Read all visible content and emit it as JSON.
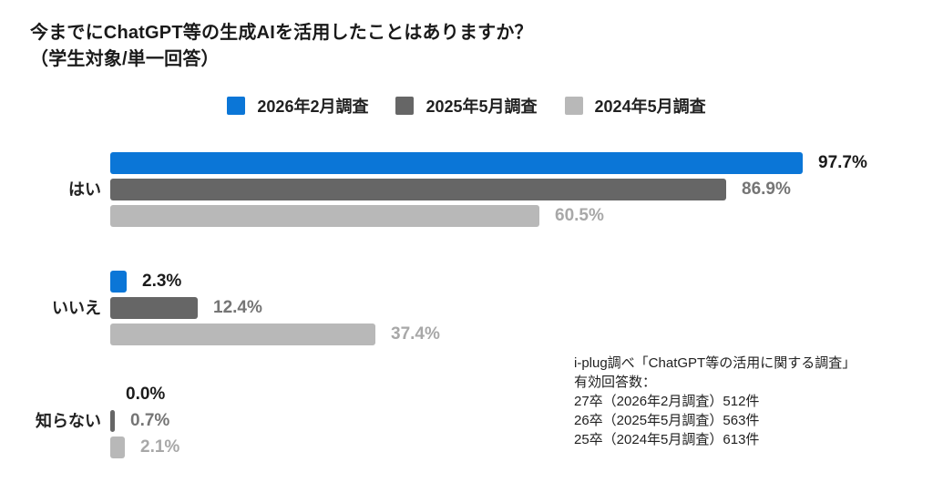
{
  "title": {
    "line1": "今までにChatGPT等の生成AIを活用したことはありますか？",
    "line2": "（学生対象/単一回答）"
  },
  "legend": [
    {
      "label": "2026年2月調査",
      "color": "#0b76d7"
    },
    {
      "label": "2025年5月調査",
      "color": "#666666"
    },
    {
      "label": "2024年5月調査",
      "color": "#b8b8b8"
    }
  ],
  "chart_data": {
    "type": "bar",
    "orientation": "horizontal",
    "title": "今までにChatGPT等の生成AIを活用したことはありますか？（学生対象/単一回答）",
    "categories": [
      "はい",
      "いいえ",
      "知らない"
    ],
    "series": [
      {
        "name": "2026年2月調査",
        "color": "#0b76d7",
        "label_color": "#1b1b1b",
        "values": [
          97.7,
          2.3,
          0.0
        ]
      },
      {
        "name": "2025年5月調査",
        "color": "#666666",
        "label_color": "#757575",
        "values": [
          86.9,
          12.4,
          0.7
        ]
      },
      {
        "name": "2024年5月調査",
        "color": "#b8b8b8",
        "label_color": "#a8a8a8",
        "values": [
          60.5,
          37.4,
          2.1
        ]
      }
    ],
    "value_suffix": "%",
    "xlim": [
      0,
      100
    ],
    "grid": false,
    "axis_visible": false,
    "legend_position": "top",
    "data_labels": true
  },
  "footnote": {
    "lines": [
      "i-plug調べ「ChatGPT等の活用に関する調査」",
      "有効回答数：",
      "27卒（2026年2月調査）512件",
      "26卒（2025年5月調査）563件",
      "25卒（2024年5月調査）613件"
    ]
  }
}
